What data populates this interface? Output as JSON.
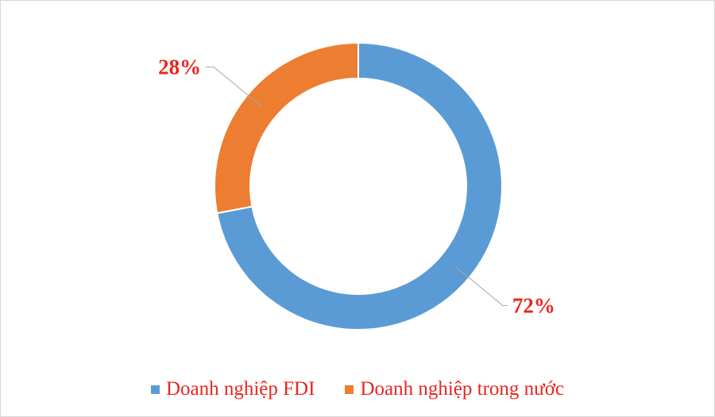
{
  "chart_data": {
    "type": "pie",
    "donut": true,
    "categories": [
      "Doanh nghiệp FDI",
      "Doanh nghiệp trong nước"
    ],
    "values": [
      72,
      28
    ],
    "data_labels": [
      "72%",
      "28%"
    ],
    "colors": [
      "#5b9bd5",
      "#ed7d31"
    ],
    "label_color": "#e8261f",
    "legend_position": "bottom",
    "start_angle": "top, clockwise"
  }
}
